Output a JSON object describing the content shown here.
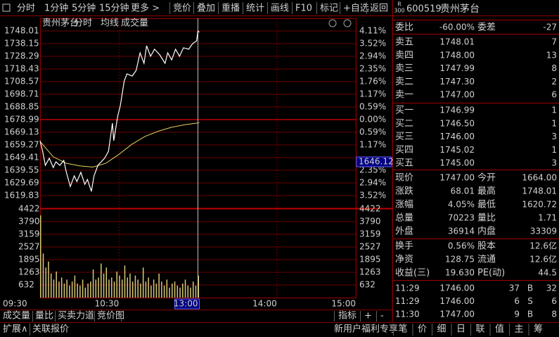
{
  "toolbar": {
    "tabs": [
      "分时",
      "1分钟",
      "5分钟",
      "15分钟",
      "更多 >"
    ],
    "buttons": [
      "竞价",
      "叠加",
      "重播",
      "统计",
      "画线",
      "F10",
      "标记",
      "+自选",
      "返回"
    ],
    "badge": [
      "R",
      "300"
    ],
    "code": "600519",
    "name": "贵州茅台"
  },
  "chart": {
    "header": [
      "贵州茅台",
      "分时",
      "均线",
      "成交量"
    ],
    "ylim": [
      1619.83,
      1748.01
    ],
    "price_ticks": [
      1748.01,
      1738.15,
      1728.29,
      1718.43,
      1708.57,
      1698.71,
      1688.85,
      1678.99,
      1669.13,
      1659.27,
      1649.41,
      1639.55,
      1629.69,
      1619.83
    ],
    "pct_ticks": [
      "4.11%",
      "3.52%",
      "2.94%",
      "2.35%",
      "1.76%",
      "1.17%",
      "0.59%",
      "0.00%",
      "0.59%",
      "1.17%",
      null,
      "2.35%",
      "2.94%",
      "3.52%"
    ],
    "cursor_price": 1646.12,
    "cursor_x": 120,
    "vlim": [
      0,
      4422
    ],
    "volume_ticks": [
      4422,
      3790,
      3159,
      2527,
      1895,
      1263,
      632
    ],
    "xlim": [
      0,
      240
    ],
    "xticks": [
      {
        "value": 0,
        "label": "09:30"
      },
      {
        "value": 60,
        "label": "10:30"
      },
      {
        "value": 120,
        "label": "13:00"
      },
      {
        "value": 180,
        "label": "14:00"
      },
      {
        "value": 240,
        "label": "15:00"
      }
    ],
    "price": {
      "color": "#ffffff",
      "x": [
        0,
        2,
        4,
        7,
        10,
        12,
        15,
        18,
        20,
        23,
        26,
        28,
        31,
        34,
        36,
        39,
        41,
        44,
        49,
        52,
        55,
        56,
        59,
        61,
        64,
        66,
        70,
        73,
        76,
        79,
        81,
        84,
        87,
        91,
        95,
        97,
        100,
        103,
        106,
        109,
        113,
        116,
        119,
        120,
        121
      ],
      "values": [
        1662.5,
        1654.3,
        1643.4,
        1648.9,
        1641.7,
        1646.1,
        1643.4,
        1647.2,
        1637.9,
        1626.9,
        1635.2,
        1630.8,
        1637.9,
        1628.6,
        1632.4,
        1623.1,
        1635.2,
        1643.4,
        1648.9,
        1654.3,
        1676.2,
        1662.6,
        1681.7,
        1689.9,
        1709.1,
        1714.6,
        1712.9,
        1717.3,
        1731.0,
        1722.8,
        1736.5,
        1728.3,
        1733.8,
        1729.4,
        1722.8,
        1731.0,
        1725.5,
        1733.8,
        1728.3,
        1734.9,
        1733.8,
        1738.2,
        1740.3,
        1748.0,
        1747.0
      ]
    },
    "avg": {
      "color": "#e8d060",
      "x": [
        0,
        10,
        20,
        30,
        40,
        50,
        60,
        70,
        80,
        90,
        100,
        110,
        121
      ],
      "values": [
        1662,
        1650,
        1645,
        1643,
        1642,
        1645,
        1652,
        1660,
        1666,
        1670,
        1673,
        1675,
        1676.5
      ]
    },
    "volume": {
      "color": "#d8c878",
      "x": [
        0,
        2,
        4,
        6,
        8,
        10,
        12,
        14,
        16,
        18,
        20,
        22,
        24,
        26,
        28,
        30,
        32,
        34,
        36,
        38,
        40,
        42,
        44,
        46,
        48,
        50,
        52,
        54,
        56,
        58,
        60,
        62,
        64,
        66,
        68,
        70,
        72,
        74,
        76,
        78,
        80,
        82,
        84,
        86,
        88,
        90,
        92,
        94,
        96,
        98,
        100,
        102,
        104,
        106,
        108,
        110,
        112,
        114,
        116,
        118,
        120
      ],
      "values": [
        4100,
        2200,
        1500,
        1800,
        1200,
        900,
        1300,
        800,
        1000,
        700,
        900,
        600,
        800,
        1100,
        700,
        600,
        900,
        500,
        700,
        800,
        1400,
        900,
        1000,
        1700,
        1200,
        1500,
        900,
        1000,
        800,
        1300,
        1100,
        900,
        1600,
        1000,
        1200,
        800,
        1100,
        900,
        700,
        1500,
        800,
        1000,
        600,
        900,
        700,
        1200,
        800,
        600,
        900,
        500,
        700,
        800,
        600,
        500,
        700,
        900,
        600,
        500,
        800,
        600,
        1100
      ]
    }
  },
  "indicator_tabs": [
    "成交量",
    "量比",
    "买卖力道",
    "竞价图"
  ],
  "indicator_buttons": [
    "指标",
    "+",
    "-"
  ],
  "orderbook": {
    "ratio": [
      "委比",
      "-60.00%",
      "委差",
      "-27"
    ],
    "sells": [
      [
        "卖五",
        "1748.01",
        "7"
      ],
      [
        "卖四",
        "1748.00",
        "13"
      ],
      [
        "卖三",
        "1747.99",
        "8"
      ],
      [
        "卖二",
        "1747.30",
        "2"
      ],
      [
        "卖一",
        "1747.00",
        "6"
      ]
    ],
    "buys": [
      [
        "买一",
        "1746.99",
        "1"
      ],
      [
        "买二",
        "1746.50",
        "1"
      ],
      [
        "买三",
        "1746.00",
        "3"
      ],
      [
        "买四",
        "1745.02",
        "1"
      ],
      [
        "买五",
        "1745.00",
        "3"
      ]
    ]
  },
  "stats": [
    {
      "cells": [
        "现价",
        "1747.00",
        "今开",
        "1664.00"
      ],
      "colors": [
        "#ff4040",
        "#00e000"
      ]
    },
    {
      "cells": [
        "涨跌",
        "68.01",
        "最高",
        "1748.01"
      ],
      "colors": [
        "#ff4040",
        "#ff4040"
      ]
    },
    {
      "cells": [
        "涨幅",
        "4.05%",
        "最低",
        "1620.72"
      ],
      "colors": [
        "#ff4040",
        "#00e000"
      ]
    },
    {
      "cells": [
        "总量",
        "70223",
        "量比",
        "1.71"
      ],
      "colors": [
        "#ffff40",
        "#ff4040"
      ]
    },
    {
      "cells": [
        "外盘",
        "36914",
        "内盘",
        "33309"
      ],
      "colors": [
        "#ff4040",
        "#00e000"
      ]
    }
  ],
  "stats2": [
    [
      "换手",
      "0.56%",
      "股本",
      "12.6亿"
    ],
    [
      "净资",
      "128.75",
      "流通",
      "12.6亿"
    ],
    [
      "收益(三)",
      "19.630",
      "PE(动)",
      "44.5"
    ]
  ],
  "trades": [
    [
      "11:29",
      "1746.00",
      "37",
      "B",
      "32"
    ],
    [
      "11:29",
      "1746.00",
      "6",
      "S",
      "6"
    ],
    [
      "11:30",
      "1747.00",
      "9",
      "B",
      "8"
    ]
  ],
  "status_bar": {
    "left": [
      "扩展∧",
      "关联报价"
    ],
    "promo": "新用户福利专享",
    "tabs": [
      "笔",
      "价",
      "细",
      "日",
      "联",
      "值",
      "主",
      "筹"
    ]
  }
}
